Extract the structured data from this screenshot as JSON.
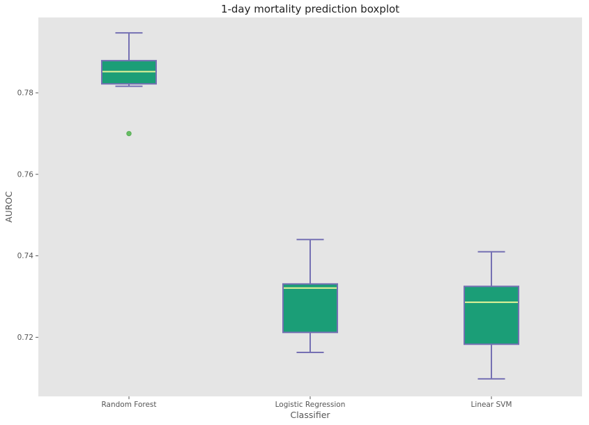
{
  "chart_data": {
    "type": "boxplot",
    "title": "1-day mortality prediction boxplot",
    "xlabel": "Classifier",
    "ylabel": "AUROC",
    "categories": [
      "Random Forest",
      "Logistic Regression",
      "Linear SVM"
    ],
    "ylim": [
      0.7055,
      0.7985
    ],
    "yticks": [
      0.72,
      0.74,
      0.76,
      0.78
    ],
    "ytick_labels": [
      "0.72",
      "0.74",
      "0.76",
      "0.78"
    ],
    "grid": false,
    "boxes": [
      {
        "category": "Random Forest",
        "whisker_low": 0.7816,
        "q1": 0.7822,
        "median": 0.7852,
        "q3": 0.7879,
        "whisker_high": 0.7947,
        "outliers": [
          0.77
        ]
      },
      {
        "category": "Logistic Regression",
        "whisker_low": 0.7163,
        "q1": 0.7212,
        "median": 0.7321,
        "q3": 0.7331,
        "whisker_high": 0.744,
        "outliers": []
      },
      {
        "category": "Linear SVM",
        "whisker_low": 0.7098,
        "q1": 0.7183,
        "median": 0.7286,
        "q3": 0.7325,
        "whisker_high": 0.741,
        "outliers": []
      }
    ],
    "colors": {
      "background": "#e5e5e5",
      "box_fill": "#1b9e77",
      "box_edge": "#7570b3",
      "median": "#e6f598",
      "outlier": "#66bd63"
    }
  }
}
